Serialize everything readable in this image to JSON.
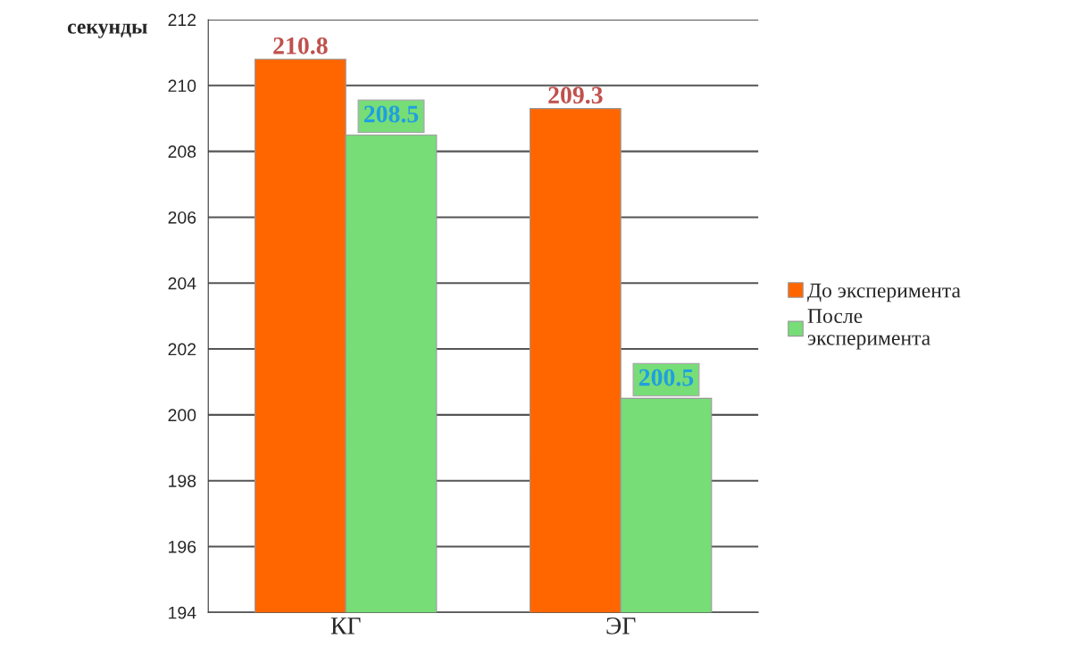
{
  "chart_data": {
    "type": "bar",
    "ylabel": "секунды",
    "categories": [
      "КГ",
      "ЭГ"
    ],
    "series": [
      {
        "name": "До эксперимента",
        "color": "#ff6600",
        "values": [
          210.8,
          209.3
        ]
      },
      {
        "name": "После эксперимента",
        "color": "#77dd77",
        "values": [
          208.5,
          200.5
        ]
      }
    ],
    "ylim": [
      194,
      212
    ],
    "yticks": [
      194,
      196,
      198,
      200,
      202,
      204,
      206,
      208,
      210,
      212
    ],
    "grid": "y",
    "legend": "right",
    "data_labels": true
  }
}
